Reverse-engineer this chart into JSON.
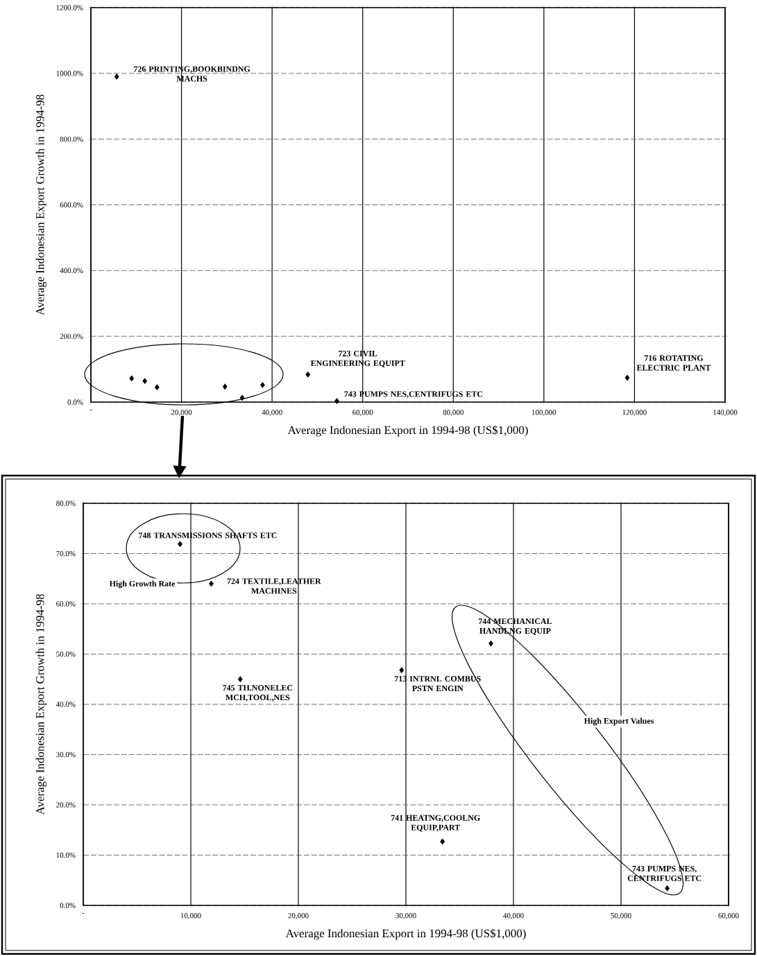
{
  "chart_data": [
    {
      "type": "scatter",
      "xlabel": "Average Indonesian Export in 1994-98 (US$1,000)",
      "ylabel": "Average Indonesian Export Growth in 1994-98",
      "x": [
        5700,
        9000,
        11900,
        14600,
        29600,
        33400,
        37900,
        47900,
        54300,
        118400
      ],
      "values": [
        990,
        72,
        64,
        45,
        47,
        13,
        52,
        84,
        3,
        74
      ],
      "color": "#000000",
      "marker": "diamond",
      "grid": true,
      "xlim": [
        0,
        140000
      ],
      "ylim": [
        0,
        1200
      ],
      "xticks": [
        {
          "value": 0,
          "label": "-"
        },
        {
          "value": 20000,
          "label": "20,000"
        },
        {
          "value": 40000,
          "label": "40,000"
        },
        {
          "value": 60000,
          "label": "60,000"
        },
        {
          "value": 80000,
          "label": "80,000"
        },
        {
          "value": 100000,
          "label": "100,000"
        },
        {
          "value": 120000,
          "label": "120,000"
        },
        {
          "value": 140000,
          "label": "140,000"
        }
      ],
      "yticks": [
        {
          "value": 0,
          "label": "0.0%"
        },
        {
          "value": 200,
          "label": "200.0%"
        },
        {
          "value": 400,
          "label": "400.0%"
        },
        {
          "value": 600,
          "label": "600.0%"
        },
        {
          "value": 800,
          "label": "800.0%"
        },
        {
          "value": 1000,
          "label": "1000.0%"
        },
        {
          "value": 1200,
          "label": "1200.0%"
        }
      ],
      "annotations": [
        {
          "text": "726 PRINTING,BOOKBINDNG MACHS",
          "x": 5700,
          "y": 990
        },
        {
          "text": "723 CIVIL ENGINEERING EQUIPT",
          "x": 47900,
          "y": 84
        },
        {
          "text": "743 PUMPS NES,CENTRIFUGS ETC",
          "x": 54300,
          "y": 3
        },
        {
          "text": "716 ROTATING ELECTRIC PLANT",
          "x": 118400,
          "y": 74
        }
      ]
    },
    {
      "type": "scatter",
      "xlabel": "Average Indonesian Export in 1994-98 (US$1,000)",
      "ylabel": "Average Indonesian Export Growth in 1994-98",
      "x": [
        9000,
        11900,
        14600,
        29600,
        33400,
        37900,
        54300
      ],
      "values": [
        71.9,
        64.0,
        45.0,
        46.8,
        12.7,
        52.1,
        3.4
      ],
      "color": "#000000",
      "marker": "diamond",
      "grid": true,
      "xlim": [
        0,
        60000
      ],
      "ylim": [
        0,
        80
      ],
      "xticks": [
        {
          "value": 0,
          "label": "-"
        },
        {
          "value": 10000,
          "label": "10,000"
        },
        {
          "value": 20000,
          "label": "20,000"
        },
        {
          "value": 30000,
          "label": "30,000"
        },
        {
          "value": 40000,
          "label": "40,000"
        },
        {
          "value": 50000,
          "label": "50,000"
        },
        {
          "value": 60000,
          "label": "60,000"
        }
      ],
      "yticks": [
        {
          "value": 0,
          "label": "0.0%"
        },
        {
          "value": 10,
          "label": "10.0%"
        },
        {
          "value": 20,
          "label": "20.0%"
        },
        {
          "value": 30,
          "label": "30.0%"
        },
        {
          "value": 40,
          "label": "40.0%"
        },
        {
          "value": 50,
          "label": "50.0%"
        },
        {
          "value": 60,
          "label": "60.0%"
        },
        {
          "value": 70,
          "label": "70.0%"
        },
        {
          "value": 80,
          "label": "80.0%"
        }
      ],
      "annotations": [
        {
          "text": "748 TRANSMISSIONS SHAFTS ETC",
          "x": 9000,
          "y": 71.9
        },
        {
          "text": "724 TEXTILE,LEATHER MACHINES",
          "x": 11900,
          "y": 64.0
        },
        {
          "text": "745 TH.NONELEC MCH,TOOL,NES",
          "x": 14600,
          "y": 45.0
        },
        {
          "text": "713 INTRNL COMBUS PSTN ENGIN",
          "x": 29600,
          "y": 46.8
        },
        {
          "text": "744 MECHANICAL HANDLNG EQUIP",
          "x": 37900,
          "y": 52.1
        },
        {
          "text": "741 HEATNG,COOLNG EQUIP,PART",
          "x": 33400,
          "y": 12.7
        },
        {
          "text": "743 PUMPS NES, CENTRIFUGS ETC",
          "x": 54300,
          "y": 3.4
        },
        "High Growth Rate",
        "High Export Values"
      ]
    }
  ]
}
